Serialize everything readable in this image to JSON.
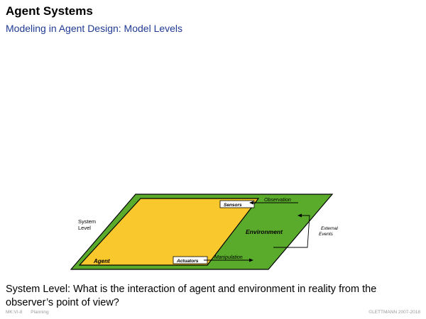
{
  "header": {
    "title": "Agent Systems",
    "subtitle": "Modeling in Agent Design: Model Levels"
  },
  "diagram": {
    "system_level_line1": "System",
    "system_level_line2": "Level",
    "agent_label": "Agent",
    "environment_label": "Environment",
    "sensors_label": "Sensors",
    "actuators_label": "Actuators",
    "observation_label": "Observation",
    "manipulation_label": "Manipulation",
    "external_events_line1": "External",
    "external_events_line2": "Events",
    "colors": {
      "environment": "#5aab2c",
      "agent": "#f9c82c",
      "outline": "#000000"
    }
  },
  "body": {
    "question": "System Level: What is the interaction of agent and environment in reality from the observer’s point of view?"
  },
  "footer": {
    "course": "MK:VI-8",
    "topic": "Planning",
    "copyright": "©LETTMANN 2007-2018"
  }
}
